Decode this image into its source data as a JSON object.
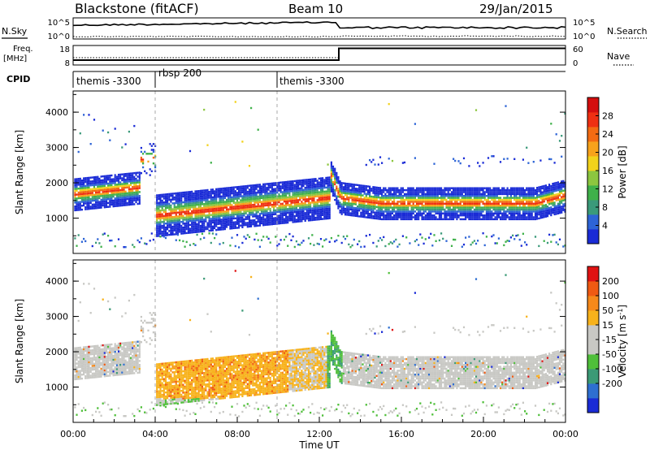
{
  "header": {
    "station": "Blackstone (fitACF)",
    "beam": "Beam 10",
    "date": "29/Jan/2015"
  },
  "top_panels": {
    "nsky_label": "N.Sky",
    "nsky_ticks": [
      "10^5",
      "10^0"
    ],
    "nsearch_label": "N.Search",
    "nsearch_ticks": [
      "10^5",
      "10^0"
    ],
    "freq_label_1": "Freq.",
    "freq_label_2": "[MHz]",
    "freq_ticks": [
      "18",
      "8"
    ],
    "nave_label": "Nave",
    "nave_ticks": [
      "60",
      "0"
    ],
    "cpid_label": "CPID",
    "cpid_segments": [
      {
        "label": "themis -3300",
        "start_hour": 0
      },
      {
        "label": "rbsp 200",
        "start_hour": 4
      },
      {
        "label": "themis -3300",
        "start_hour": 10
      }
    ]
  },
  "colors": {
    "power": [
      "#1a2bd6",
      "#2d64d6",
      "#3a9a7a",
      "#3fb14a",
      "#8cc63f",
      "#f2d21b",
      "#f7a21b",
      "#f36b12",
      "#ef3012",
      "#d40e0e"
    ],
    "velocity": [
      "#1a2bd6",
      "#2e6fd1",
      "#3b9a76",
      "#4fbf3a",
      "#c8c8c4",
      "#c8c8c4",
      "#f7b21b",
      "#f6891a",
      "#f05a12",
      "#e01212"
    ],
    "ground": "#c8c8c4"
  },
  "chart_data": [
    {
      "type": "heatmap",
      "name": "power",
      "ylabel": "Slant Range [km]",
      "x_range_hours": [
        0,
        24
      ],
      "ylim": [
        0,
        4600
      ],
      "yticks": [
        "1000",
        "2000",
        "3000",
        "4000"
      ],
      "colorbar_label": "Power [dB]",
      "colorbar_ticks": [
        "4",
        "8",
        "12",
        "16",
        "20",
        "24",
        "28"
      ],
      "colorbar_range": [
        0,
        32
      ]
    },
    {
      "type": "heatmap",
      "name": "velocity",
      "ylabel": "Slant Range [km]",
      "xlabel": "Time UT",
      "x_range_hours": [
        0,
        24
      ],
      "ylim": [
        0,
        4600
      ],
      "yticks": [
        "1000",
        "2000",
        "3000",
        "4000"
      ],
      "xticks": [
        "00:00",
        "04:00",
        "08:00",
        "12:00",
        "16:00",
        "20:00",
        "00:00"
      ],
      "colorbar_label": "Velocity [m s",
      "colorbar_label_sup": "-1",
      "colorbar_ticks": [
        "200",
        "100",
        "50",
        "15",
        "-15",
        "-50",
        "-100",
        "-200"
      ]
    }
  ]
}
